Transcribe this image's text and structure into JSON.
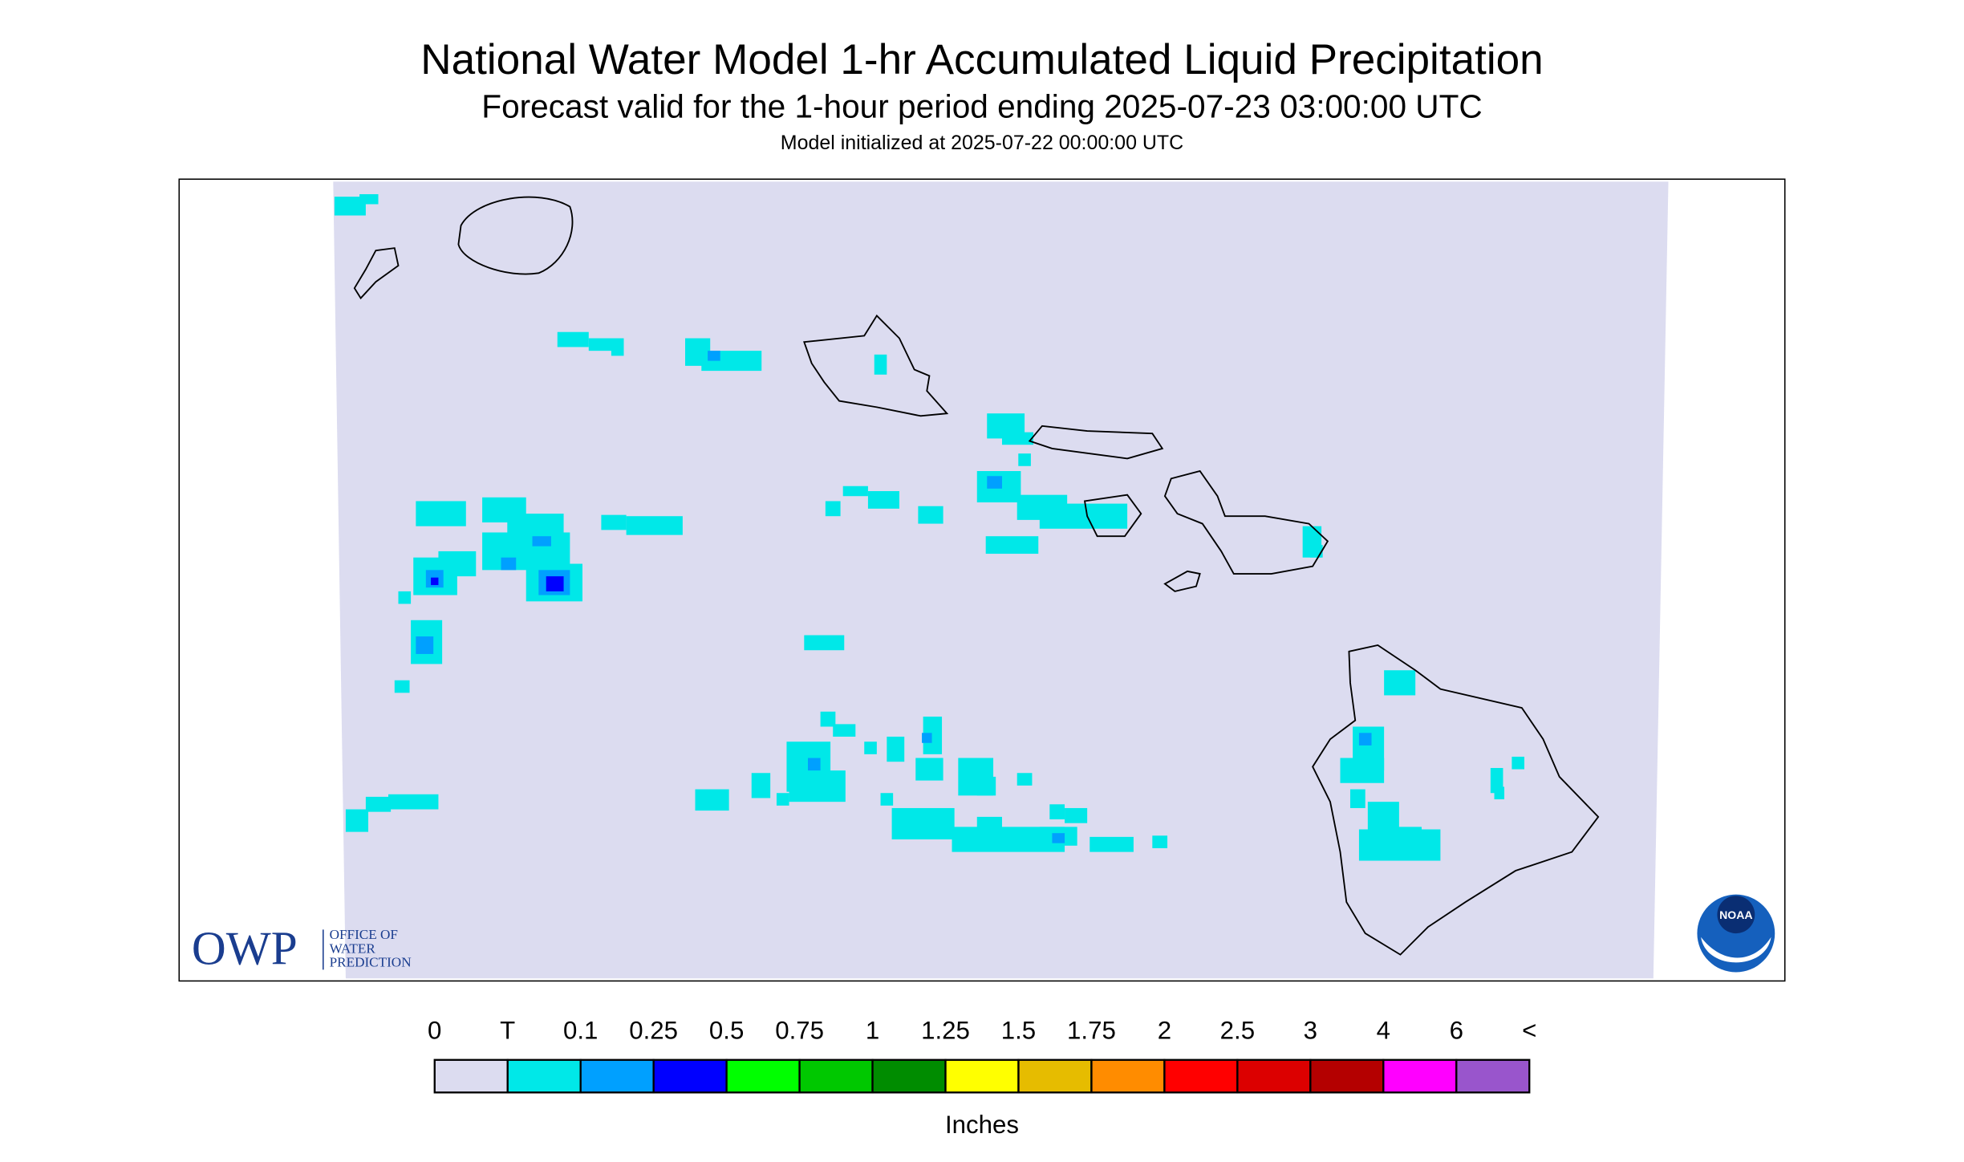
{
  "header": {
    "title": "National Water Model 1-hr Accumulated Liquid Precipitation",
    "subtitle": "Forecast valid for the 1-hour period ending 2025-07-23 03:00:00 UTC",
    "initialized": "Model initialized at 2025-07-22 00:00:00 UTC"
  },
  "legend": {
    "labels": [
      "0",
      "T",
      "0.1",
      "0.25",
      "0.5",
      "0.75",
      "1",
      "1.25",
      "1.5",
      "1.75",
      "2",
      "2.5",
      "3",
      "4",
      "6",
      "<"
    ],
    "colors": [
      "#dcdcf0",
      "#00e8e8",
      "#00a0ff",
      "#0000ff",
      "#00ff00",
      "#00c800",
      "#008c00",
      "#ffff00",
      "#e6bc00",
      "#ff8c00",
      "#ff0000",
      "#dc0000",
      "#b40000",
      "#ff00ff",
      "#9955cc"
    ],
    "units": "Inches"
  },
  "logos": {
    "owp": "OWP",
    "owp_lines": [
      "OFFICE OF",
      "WATER",
      "PREDICTION"
    ],
    "noaa": "NOAA"
  }
}
